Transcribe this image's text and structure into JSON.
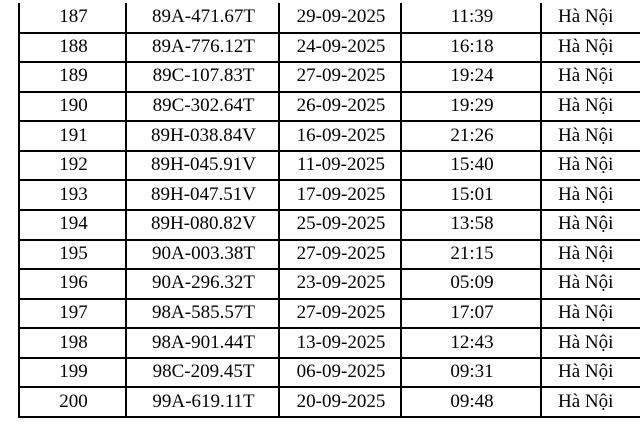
{
  "table": {
    "rows": [
      [
        "187",
        "89A-471.67T",
        "29-09-2025",
        "11:39",
        "Hà Nội"
      ],
      [
        "188",
        "89A-776.12T",
        "24-09-2025",
        "16:18",
        "Hà Nội"
      ],
      [
        "189",
        "89C-107.83T",
        "27-09-2025",
        "19:24",
        "Hà Nội"
      ],
      [
        "190",
        "89C-302.64T",
        "26-09-2025",
        "19:29",
        "Hà Nội"
      ],
      [
        "191",
        "89H-038.84V",
        "16-09-2025",
        "21:26",
        "Hà Nội"
      ],
      [
        "192",
        "89H-045.91V",
        "11-09-2025",
        "15:40",
        "Hà Nội"
      ],
      [
        "193",
        "89H-047.51V",
        "17-09-2025",
        "15:01",
        "Hà Nội"
      ],
      [
        "194",
        "89H-080.82V",
        "25-09-2025",
        "13:58",
        "Hà Nội"
      ],
      [
        "195",
        "90A-003.38T",
        "27-09-2025",
        "21:15",
        "Hà Nội"
      ],
      [
        "196",
        "90A-296.32T",
        "23-09-2025",
        "05:09",
        "Hà Nội"
      ],
      [
        "197",
        "98A-585.57T",
        "27-09-2025",
        "17:07",
        "Hà Nội"
      ],
      [
        "198",
        "98A-901.44T",
        "13-09-2025",
        "12:43",
        "Hà Nội"
      ],
      [
        "199",
        "98C-209.45T",
        "06-09-2025",
        "09:31",
        "Hà Nội"
      ],
      [
        "200",
        "99A-619.11T",
        "20-09-2025",
        "09:48",
        "Hà Nội"
      ]
    ]
  }
}
